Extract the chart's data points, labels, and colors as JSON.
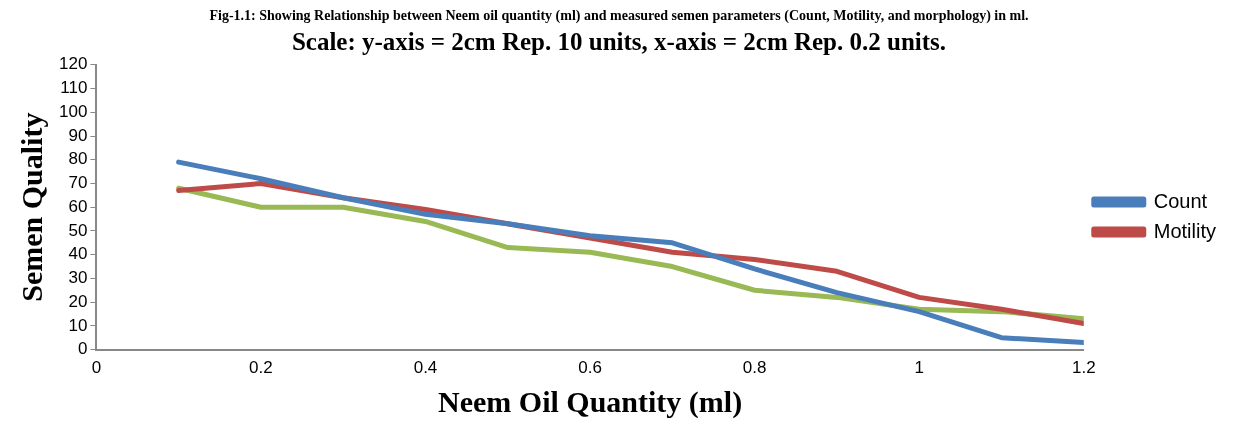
{
  "chart_data": {
    "type": "line",
    "title": "Fig-1.1: Showing Relationship between Neem oil quantity (ml) and measured semen parameters (Count, Motility, and morphology) in ml.",
    "subtitle": "Scale: y-axis = 2cm Rep. 10 units, x-axis = 2cm Rep. 0.2 units.",
    "xlabel": "Neem Oil Quantity (ml)",
    "ylabel": "Semen Quality",
    "x": [
      0.1,
      0.2,
      0.3,
      0.4,
      0.5,
      0.6,
      0.7,
      0.8,
      0.9,
      1.0,
      1.1,
      1.2
    ],
    "series": [
      {
        "name": "Count",
        "color": "#4a7ebb",
        "values": [
          79,
          72,
          64,
          57,
          53,
          48,
          45,
          34,
          24,
          16,
          5,
          3
        ]
      },
      {
        "name": "Motility",
        "color": "#be4b48",
        "values": [
          67,
          70,
          64,
          59,
          53,
          47,
          41,
          38,
          33,
          22,
          17,
          11
        ]
      },
      {
        "color": "#98b954",
        "values": [
          68,
          60,
          60,
          54,
          43,
          41,
          35,
          25,
          22,
          17,
          16,
          13
        ]
      }
    ],
    "xlim": [
      0,
      1.2
    ],
    "xticks": [
      0,
      0.2,
      0.4,
      0.6,
      0.8,
      1,
      1.2
    ],
    "ylim": [
      0,
      120
    ],
    "yticks": [
      0,
      10,
      20,
      30,
      40,
      50,
      60,
      70,
      80,
      90,
      100,
      110,
      120
    ],
    "grid": false,
    "legend": "right",
    "marker": "none",
    "line_style": "solid"
  }
}
